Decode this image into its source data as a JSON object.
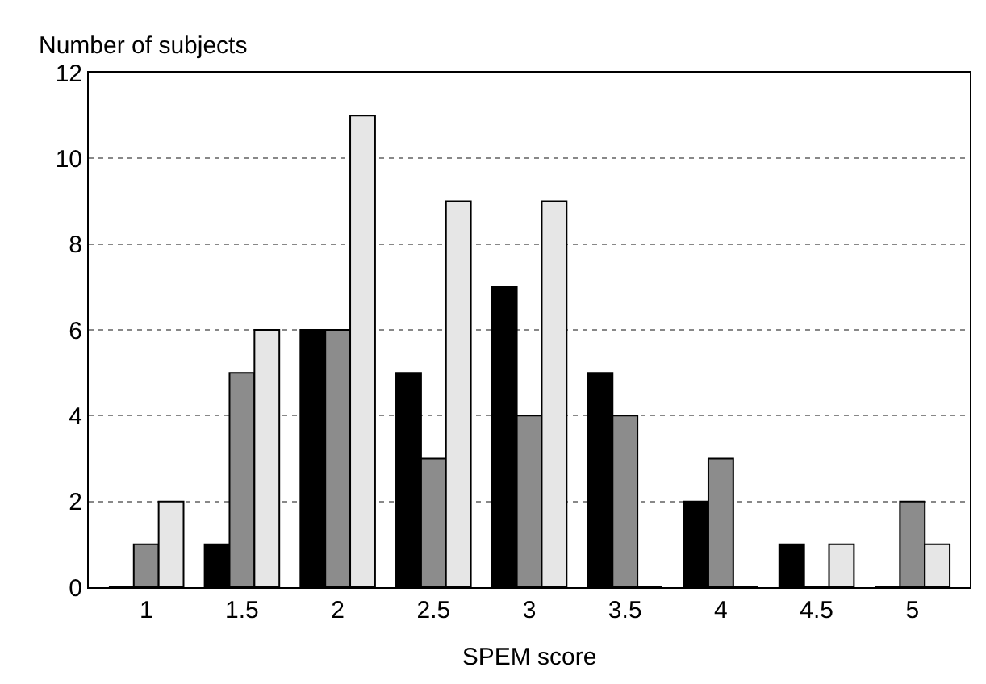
{
  "chart_data": {
    "type": "bar",
    "xlabel": "SPEM score",
    "ylabel": "Number of subjects",
    "categories": [
      "1",
      "1.5",
      "2",
      "2.5",
      "3",
      "3.5",
      "4",
      "4.5",
      "5"
    ],
    "series": [
      {
        "color": "#000000",
        "values": [
          0,
          1,
          6,
          5,
          7,
          5,
          2,
          1,
          0
        ]
      },
      {
        "color": "#8c8c8c",
        "values": [
          1,
          5,
          6,
          3,
          4,
          4,
          3,
          0,
          2
        ]
      },
      {
        "color": "#e6e6e6",
        "values": [
          2,
          6,
          11,
          9,
          9,
          0,
          0,
          1,
          1
        ]
      }
    ],
    "ylim": [
      0,
      12
    ],
    "yticks": [
      0,
      2,
      4,
      6,
      8,
      10,
      12
    ],
    "grid": "y"
  }
}
